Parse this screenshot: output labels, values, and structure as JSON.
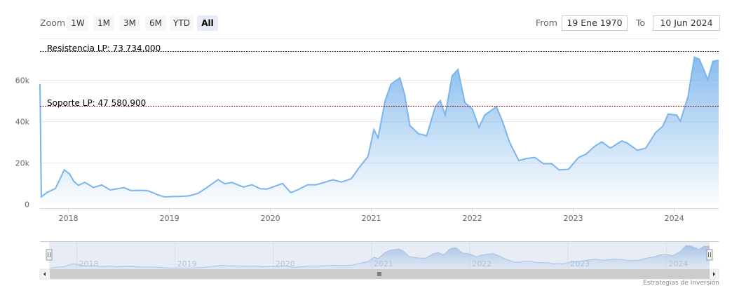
{
  "range_selector": {
    "zoom_label": "Zoom",
    "buttons": [
      "1W",
      "1M",
      "3M",
      "6M",
      "YTD",
      "All"
    ],
    "selected": "All",
    "from_label": "From",
    "from_value": "19 Ene 1970",
    "to_label": "To",
    "to_value": "10 Jun 2024"
  },
  "credits": "Estrategias de Inversión",
  "colors": {
    "series": "#7cb5ec",
    "fill": "#a9cdf0",
    "support": "#8b0000",
    "resistance": "#333333",
    "navigator_mask": "#d5ddec",
    "scrollbar": "#cccccc"
  },
  "chart_data": {
    "type": "area",
    "xlabel": "",
    "ylabel": "",
    "ylim": [
      0,
      74000
    ],
    "grid": true,
    "y_ticks": [
      "0",
      "20k",
      "40k",
      "60k"
    ],
    "y_tick_values": [
      0,
      20000,
      40000,
      60000
    ],
    "x_ticks": [
      "2018",
      "2019",
      "2020",
      "2021",
      "2022",
      "2023",
      "2024"
    ],
    "plot_lines": [
      {
        "label": "Resistencia LP: 73 734,000",
        "value": 73734,
        "color": "#333333"
      },
      {
        "label": "Soporte LP: 47 580,900",
        "value": 47580.9,
        "color": "#8b0000"
      }
    ],
    "x": [
      "2017-09-20",
      "2017-09-25",
      "2017-10-15",
      "2017-11-15",
      "2017-12-17",
      "2018-01-05",
      "2018-01-20",
      "2018-02-06",
      "2018-03-01",
      "2018-04-01",
      "2018-05-01",
      "2018-06-01",
      "2018-07-20",
      "2018-08-15",
      "2018-09-15",
      "2018-10-15",
      "2018-11-25",
      "2018-12-15",
      "2019-01-15",
      "2019-02-15",
      "2019-03-15",
      "2019-04-15",
      "2019-05-15",
      "2019-06-26",
      "2019-07-20",
      "2019-08-15",
      "2019-09-25",
      "2019-10-26",
      "2019-11-25",
      "2019-12-20",
      "2020-01-20",
      "2020-02-14",
      "2020-03-15",
      "2020-04-15",
      "2020-05-15",
      "2020-06-15",
      "2020-07-28",
      "2020-08-15",
      "2020-09-15",
      "2020-10-20",
      "2020-11-20",
      "2020-12-20",
      "2021-01-10",
      "2021-01-25",
      "2021-02-20",
      "2021-03-13",
      "2021-04-14",
      "2021-05-01",
      "2021-05-20",
      "2021-06-20",
      "2021-07-20",
      "2021-08-20",
      "2021-09-07",
      "2021-09-25",
      "2021-10-20",
      "2021-11-10",
      "2021-12-05",
      "2022-01-01",
      "2022-01-25",
      "2022-02-15",
      "2022-03-29",
      "2022-04-20",
      "2022-05-15",
      "2022-06-18",
      "2022-07-15",
      "2022-08-15",
      "2022-09-15",
      "2022-10-15",
      "2022-11-10",
      "2022-12-15",
      "2023-01-20",
      "2023-02-15",
      "2023-03-20",
      "2023-04-14",
      "2023-05-15",
      "2023-06-25",
      "2023-07-15",
      "2023-08-20",
      "2023-09-20",
      "2023-10-25",
      "2023-11-20",
      "2023-12-10",
      "2024-01-10",
      "2024-01-23",
      "2024-02-20",
      "2024-03-14",
      "2024-04-01",
      "2024-04-20",
      "2024-05-01",
      "2024-05-20",
      "2024-06-10"
    ],
    "values": [
      58000,
      3500,
      5500,
      7500,
      16500,
      14500,
      11000,
      9000,
      10500,
      8000,
      9200,
      6800,
      7900,
      6500,
      6600,
      6400,
      4200,
      3400,
      3600,
      3700,
      4000,
      5200,
      7800,
      11800,
      9800,
      10400,
      8200,
      9300,
      7400,
      7200,
      8700,
      9900,
      5500,
      7200,
      9300,
      9300,
      11000,
      11700,
      10600,
      12200,
      18000,
      23000,
      36000,
      32000,
      50000,
      58000,
      61000,
      53000,
      38000,
      34000,
      33000,
      47000,
      50000,
      43000,
      62000,
      65000,
      49000,
      46000,
      37000,
      43000,
      47000,
      40000,
      30000,
      21000,
      22000,
      22500,
      19500,
      19500,
      16500,
      16800,
      22500,
      24000,
      28000,
      30000,
      27000,
      30500,
      29500,
      26000,
      27000,
      34500,
      37500,
      43500,
      43000,
      40000,
      52000,
      71000,
      70000,
      64000,
      60000,
      69000,
      69500
    ],
    "series_spike_note": ""
  }
}
